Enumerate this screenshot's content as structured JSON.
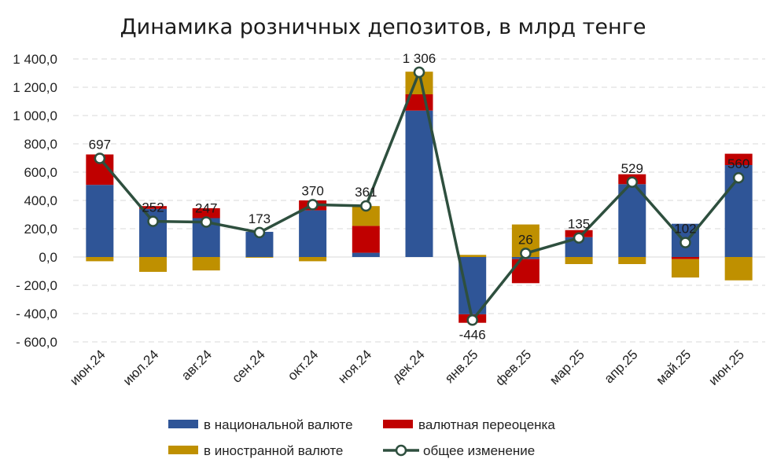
{
  "chart_data": {
    "type": "bar",
    "title": "Динамика розничных депозитов, в млрд тенге",
    "categories": [
      "июн.24",
      "июл.24",
      "авг.24",
      "сен.24",
      "окт.24",
      "ноя.24",
      "дек.24",
      "янв.25",
      "фев.25",
      "мар.25",
      "апр.25",
      "май.25",
      "июн.25"
    ],
    "ylim": [
      -600,
      1400
    ],
    "yticks": [
      -600,
      -400,
      -200,
      0,
      200,
      400,
      600,
      800,
      1000,
      1200,
      1400
    ],
    "ytick_labels": [
      "- 600,0",
      "- 400,0",
      "- 200,0",
      "0,0",
      "200,0",
      "400,0",
      "600,0",
      "800,0",
      "1 000,0",
      "1 200,0",
      "1 400,0"
    ],
    "series": [
      {
        "name": "в национальной валюте",
        "color": "#2f5597",
        "kind": "stacked-bar",
        "values": [
          510,
          340,
          275,
          178,
          330,
          30,
          1035,
          -405,
          -15,
          140,
          515,
          235,
          650
        ]
      },
      {
        "name": "валютная переоценка",
        "color": "#c00000",
        "kind": "stacked-bar",
        "values": [
          215,
          20,
          70,
          0,
          70,
          190,
          115,
          -60,
          -170,
          50,
          70,
          -15,
          80
        ]
      },
      {
        "name": "в иностранной валюте",
        "color": "#bf9000",
        "kind": "stacked-bar",
        "values": [
          -30,
          -105,
          -95,
          -5,
          -30,
          140,
          160,
          15,
          230,
          -50,
          -50,
          -130,
          -165
        ]
      },
      {
        "name": "общее изменение",
        "color": "#2e4f3e",
        "kind": "line",
        "values": [
          697,
          252,
          247,
          173,
          370,
          361,
          1306,
          -446,
          26,
          135,
          529,
          102,
          560
        ],
        "labels": [
          "697",
          "252",
          "247",
          "173",
          "370",
          "361",
          "1 306",
          "-446",
          "26",
          "135",
          "529",
          "102",
          "560"
        ]
      }
    ],
    "legend": [
      {
        "name": "в национальной валюте",
        "color": "#2f5597",
        "marker": "rect"
      },
      {
        "name": "валютная переоценка",
        "color": "#c00000",
        "marker": "rect"
      },
      {
        "name": "в иностранной валюте",
        "color": "#bf9000",
        "marker": "rect"
      },
      {
        "name": "общее изменение",
        "color": "#2e4f3e",
        "marker": "line-circle"
      }
    ],
    "legend_position": "bottom",
    "grid": true
  }
}
